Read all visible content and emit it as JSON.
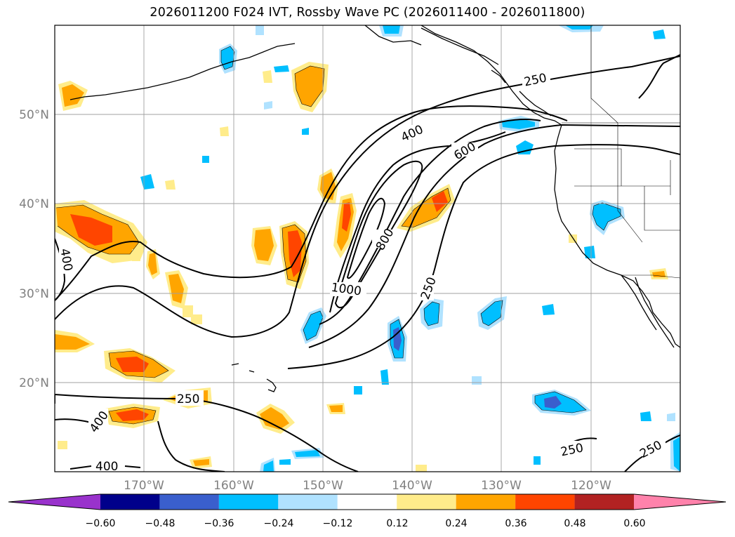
{
  "title": "2026011200 F024 IVT, Rossby Wave PC (2026011400 - 2026011800)",
  "map": {
    "lat_labels": [
      "50°N",
      "40°N",
      "30°N",
      "20°N"
    ],
    "lon_labels": [
      "170°W",
      "160°W",
      "150°W",
      "140°W",
      "130°W",
      "120°W"
    ],
    "contour_labels": [
      "250",
      "400",
      "600",
      "800",
      "1000",
      "250",
      "400",
      "250",
      "400",
      "400",
      "250",
      "250"
    ]
  },
  "colorbar": {
    "colors": [
      "#9932cc",
      "#00008b",
      "#3a5fcd",
      "#00bfff",
      "#b0e2ff",
      "#ffffff",
      "#ffec8b",
      "#ffa500",
      "#ff4500",
      "#b22222",
      "#ff82ab"
    ],
    "tick_labels": [
      "−0.60",
      "−0.48",
      "−0.36",
      "−0.24",
      "−0.12",
      "0.12",
      "0.24",
      "0.36",
      "0.48",
      "0.60"
    ]
  }
}
